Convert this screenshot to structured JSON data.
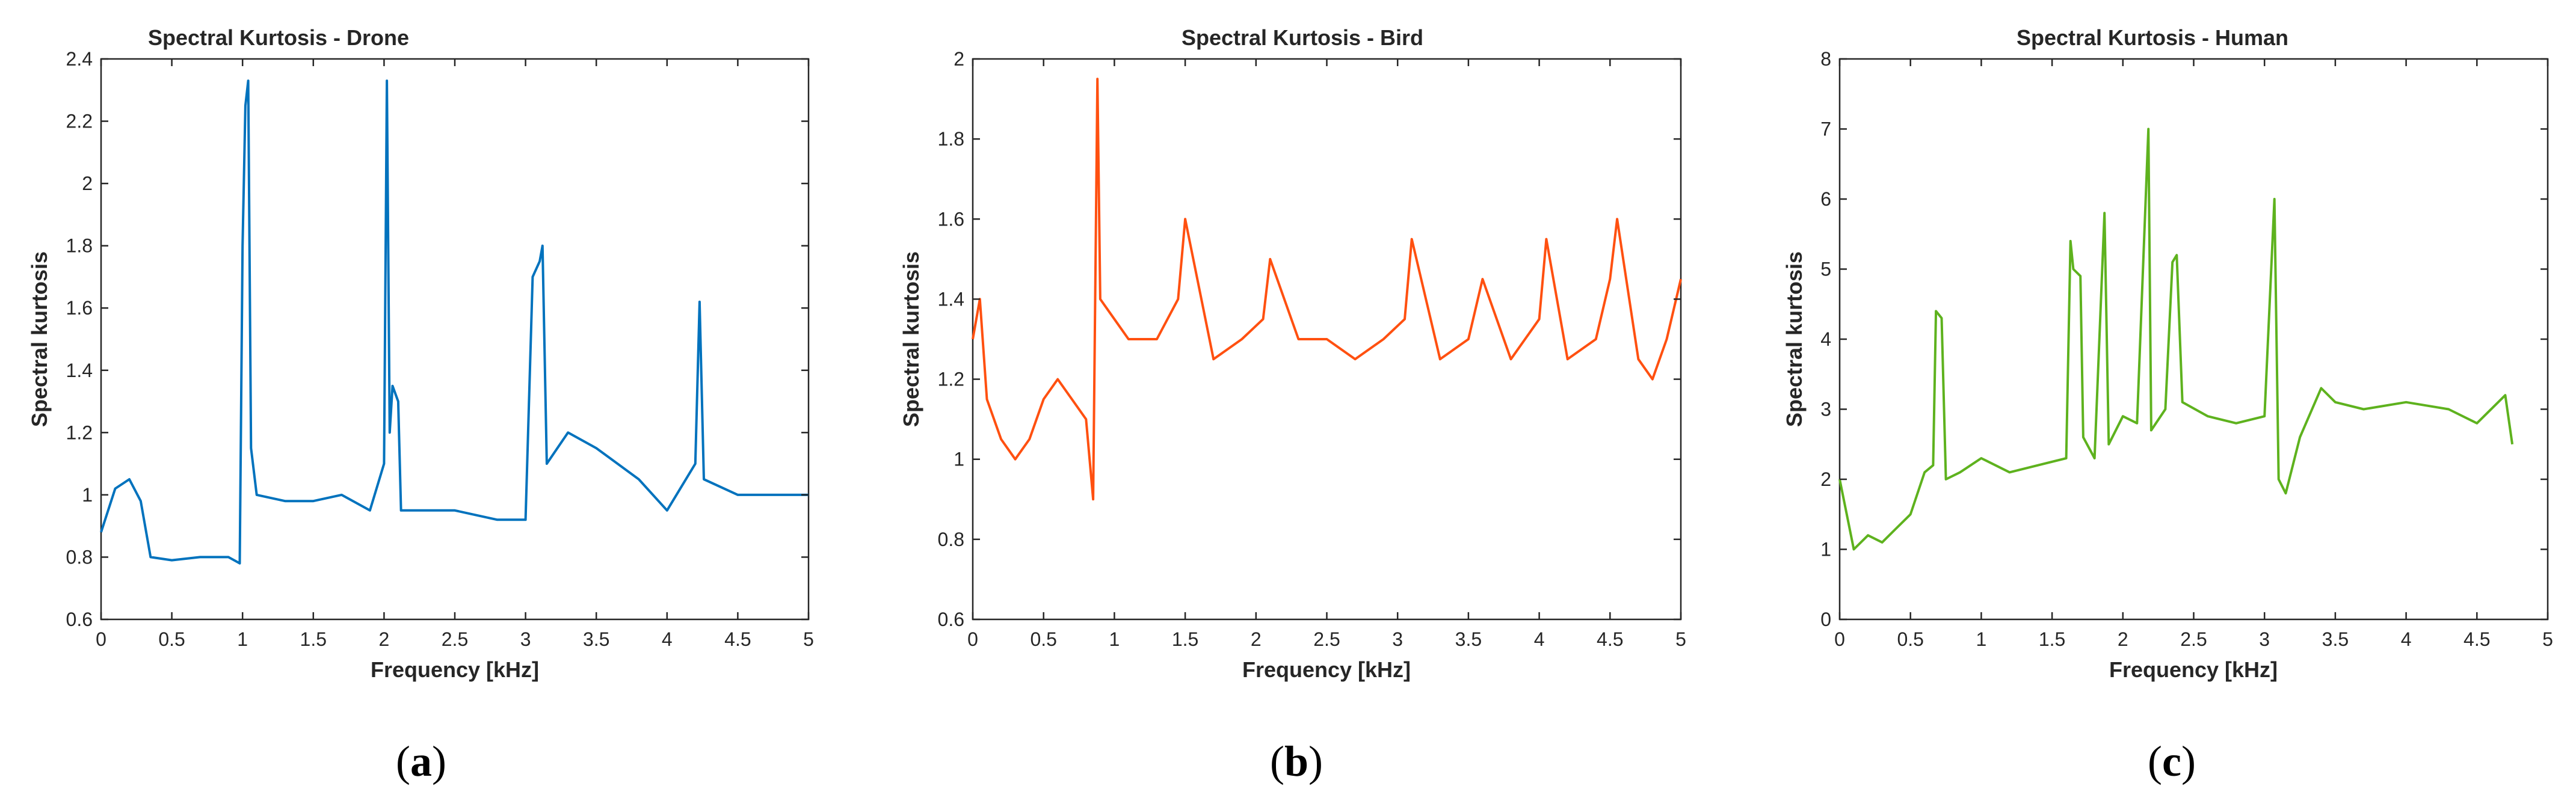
{
  "figure": {
    "panels": [
      {
        "label_open": "(",
        "label_letter": "a",
        "label_close": ")"
      },
      {
        "label_open": "(",
        "label_letter": "b",
        "label_close": ")"
      },
      {
        "label_open": "(",
        "label_letter": "c",
        "label_close": ")"
      }
    ]
  },
  "chart_data": [
    {
      "type": "line",
      "title": "Spectral Kurtosis - Drone",
      "xlabel": "Frequency [kHz]",
      "ylabel": "Spectral kurtosis",
      "xlim": [
        0,
        5
      ],
      "ylim": [
        0.6,
        2.4
      ],
      "xticks": [
        "0",
        "0.5",
        "1",
        "1.5",
        "2",
        "2.5",
        "3",
        "3.5",
        "4",
        "4.5",
        "5"
      ],
      "yticks": [
        "0.6",
        "0.8",
        "1",
        "1.2",
        "1.4",
        "1.6",
        "1.8",
        "2",
        "2.2",
        "2.4"
      ],
      "grid": false,
      "color": "#0072BD",
      "series": [
        {
          "x": [
            0,
            0.1,
            0.2,
            0.28,
            0.35,
            0.5,
            0.7,
            0.9,
            0.98,
            1.0,
            1.02,
            1.04,
            1.06,
            1.1,
            1.3,
            1.5,
            1.7,
            1.9,
            2.0,
            2.02,
            2.04,
            2.06,
            2.1,
            2.12,
            2.2,
            2.5,
            2.8,
            3.0,
            3.05,
            3.1,
            3.12,
            3.15,
            3.3,
            3.5,
            3.8,
            4.0,
            4.2,
            4.23,
            4.26,
            4.5,
            4.8,
            5.0
          ],
          "y": [
            0.88,
            1.02,
            1.05,
            0.98,
            0.8,
            0.79,
            0.8,
            0.8,
            0.78,
            1.8,
            2.25,
            2.33,
            1.15,
            1.0,
            0.98,
            0.98,
            1.0,
            0.95,
            1.1,
            2.33,
            1.2,
            1.35,
            1.3,
            0.95,
            0.95,
            0.95,
            0.92,
            0.92,
            1.7,
            1.75,
            1.8,
            1.1,
            1.2,
            1.15,
            1.05,
            0.95,
            1.1,
            1.62,
            1.05,
            1.0,
            1.0,
            1.0
          ]
        }
      ]
    },
    {
      "type": "line",
      "title": "Spectral Kurtosis - Bird",
      "xlabel": "Frequency [kHz]",
      "ylabel": "Spectral kurtosis",
      "xlim": [
        0,
        5
      ],
      "ylim": [
        0.6,
        2
      ],
      "xticks": [
        "0",
        "0.5",
        "1",
        "1.5",
        "2",
        "2.5",
        "3",
        "3.5",
        "4",
        "4.5",
        "5"
      ],
      "yticks": [
        "0.6",
        "0.8",
        "1",
        "1.2",
        "1.4",
        "1.6",
        "1.8",
        "2"
      ],
      "grid": false,
      "color": "#FF5010",
      "series": [
        {
          "x": [
            0,
            0.05,
            0.1,
            0.2,
            0.3,
            0.4,
            0.5,
            0.6,
            0.7,
            0.8,
            0.85,
            0.88,
            0.9,
            1.0,
            1.1,
            1.3,
            1.45,
            1.5,
            1.7,
            1.9,
            2.05,
            2.1,
            2.3,
            2.5,
            2.7,
            2.9,
            3.05,
            3.1,
            3.3,
            3.5,
            3.6,
            3.8,
            4.0,
            4.05,
            4.2,
            4.4,
            4.5,
            4.55,
            4.7,
            4.8,
            4.9,
            5.0
          ],
          "y": [
            1.3,
            1.4,
            1.15,
            1.05,
            1.0,
            1.05,
            1.15,
            1.2,
            1.15,
            1.1,
            0.9,
            1.95,
            1.4,
            1.35,
            1.3,
            1.3,
            1.4,
            1.6,
            1.25,
            1.3,
            1.35,
            1.5,
            1.3,
            1.3,
            1.25,
            1.3,
            1.35,
            1.55,
            1.25,
            1.3,
            1.45,
            1.25,
            1.35,
            1.55,
            1.25,
            1.3,
            1.45,
            1.6,
            1.25,
            1.2,
            1.3,
            1.45
          ]
        }
      ]
    },
    {
      "type": "line",
      "title": "Spectral Kurtosis - Human",
      "xlabel": "Frequency [kHz]",
      "ylabel": "Spectral kurtosis",
      "xlim": [
        0,
        5
      ],
      "ylim": [
        0,
        8
      ],
      "xticks": [
        "0",
        "0.5",
        "1",
        "1.5",
        "2",
        "2.5",
        "3",
        "3.5",
        "4",
        "4.5",
        "5"
      ],
      "yticks": [
        "0",
        "1",
        "2",
        "3",
        "4",
        "5",
        "6",
        "7",
        "8"
      ],
      "grid": false,
      "color": "#5EB21E",
      "series": [
        {
          "x": [
            0,
            0.05,
            0.1,
            0.2,
            0.3,
            0.4,
            0.5,
            0.6,
            0.66,
            0.68,
            0.72,
            0.75,
            0.85,
            1.0,
            1.2,
            1.4,
            1.6,
            1.63,
            1.65,
            1.7,
            1.72,
            1.8,
            1.87,
            1.9,
            2.0,
            2.1,
            2.18,
            2.2,
            2.3,
            2.35,
            2.38,
            2.42,
            2.6,
            2.8,
            3.0,
            3.07,
            3.1,
            3.15,
            3.25,
            3.4,
            3.5,
            3.7,
            4.0,
            4.3,
            4.5,
            4.7,
            4.75
          ],
          "y": [
            2.0,
            1.5,
            1.0,
            1.2,
            1.1,
            1.3,
            1.5,
            2.1,
            2.2,
            4.4,
            4.3,
            2.0,
            2.1,
            2.3,
            2.1,
            2.2,
            2.3,
            5.4,
            5.0,
            4.9,
            2.6,
            2.3,
            5.8,
            2.5,
            2.9,
            2.8,
            7.0,
            2.7,
            3.0,
            5.1,
            5.2,
            3.1,
            2.9,
            2.8,
            2.9,
            6.0,
            2.0,
            1.8,
            2.6,
            3.3,
            3.1,
            3.0,
            3.1,
            3.0,
            2.8,
            3.2,
            2.5
          ]
        }
      ]
    }
  ]
}
